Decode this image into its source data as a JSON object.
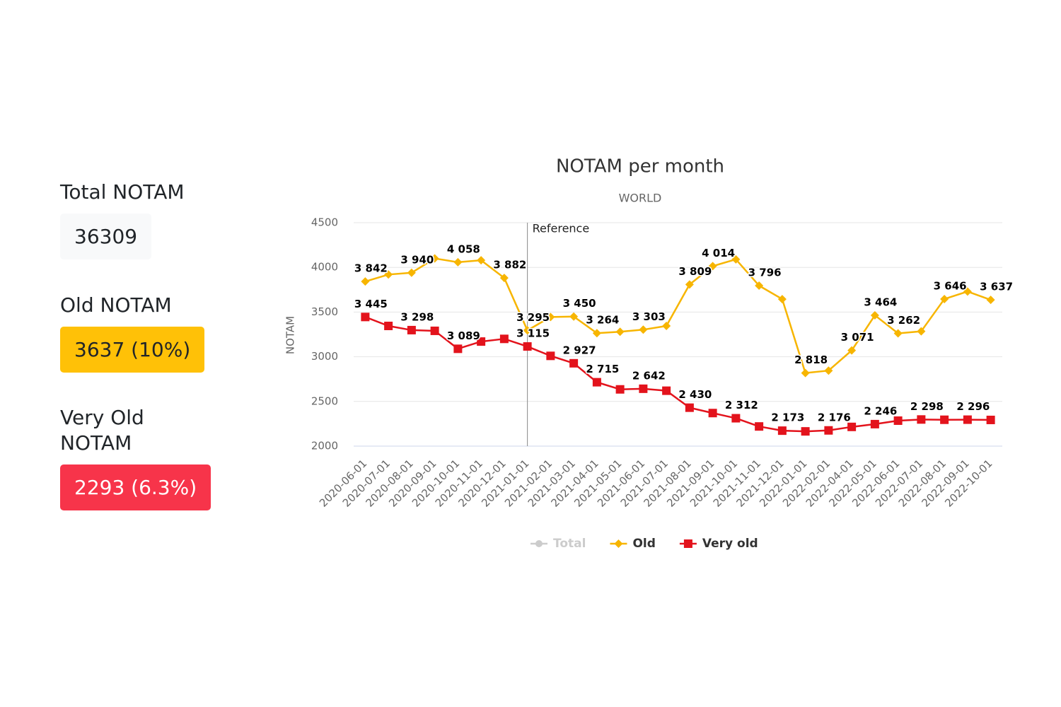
{
  "stats": [
    {
      "label": "Total NOTAM",
      "value": "36309"
    },
    {
      "label": "Old NOTAM",
      "value": "3637 (10%)"
    },
    {
      "label": "Very Old NOTAM",
      "value": "2293 (6.3%)"
    }
  ],
  "chart_data": {
    "type": "line",
    "title": "NOTAM per month",
    "subtitle": "WORLD",
    "y_label": "NOTAM",
    "categories": [
      "2020-06-01",
      "2020-07-01",
      "2020-08-01",
      "2020-09-01",
      "2020-10-01",
      "2020-11-01",
      "2020-12-01",
      "2021-01-01",
      "2021-02-01",
      "2021-03-01",
      "2021-04-01",
      "2021-05-01",
      "2021-06-01",
      "2021-07-01",
      "2021-08-01",
      "2021-09-01",
      "2021-10-01",
      "2021-11-01",
      "2021-12-01",
      "2022-01-01",
      "2022-02-01",
      "2022-04-01",
      "2022-05-01",
      "2022-06-01",
      "2022-07-01",
      "2022-08-01",
      "2022-09-01",
      "2022-10-01"
    ],
    "ylim": [
      2000,
      4500
    ],
    "yticks": [
      2000,
      2500,
      3000,
      3500,
      4000,
      4500
    ],
    "grid": true,
    "legend": "bottom",
    "plot_lines": [
      {
        "x": "2021-01-01",
        "label": "Reference"
      }
    ],
    "series": [
      {
        "name": "Total",
        "color": "#cccccc",
        "visible": false,
        "marker": "circle",
        "values": [
          null,
          null,
          null,
          null,
          null,
          null,
          null,
          null,
          null,
          null,
          null,
          null,
          null,
          null,
          null,
          null,
          null,
          null,
          null,
          null,
          null,
          null,
          null,
          null,
          null,
          null,
          null,
          null
        ]
      },
      {
        "name": "Old",
        "color": "#f7b500",
        "visible": true,
        "marker": "diamond",
        "values": [
          3842,
          3920,
          3940,
          4100,
          4058,
          4080,
          3882,
          3295,
          3445,
          3450,
          3264,
          3280,
          3303,
          3345,
          3809,
          4014,
          4090,
          3796,
          3645,
          2818,
          2845,
          3071,
          3464,
          3262,
          3285,
          3646,
          3730,
          3637
        ],
        "value_labels": [
          "3 842",
          null,
          "3 940",
          null,
          "4 058",
          null,
          "3 882",
          "3 295",
          null,
          "3 450",
          "3 264",
          null,
          "3 303",
          null,
          "3 809",
          "4 014",
          null,
          "3 796",
          null,
          "2 818",
          null,
          "3 071",
          "3 464",
          "3 262",
          null,
          "3 646",
          null,
          "3 637"
        ]
      },
      {
        "name": "Very old",
        "color": "#e3131c",
        "visible": true,
        "marker": "square",
        "values": [
          3445,
          3345,
          3298,
          3290,
          3089,
          3170,
          3200,
          3115,
          3010,
          2927,
          2715,
          2635,
          2642,
          2620,
          2430,
          2370,
          2312,
          2220,
          2173,
          2165,
          2176,
          2215,
          2246,
          2285,
          2298,
          2295,
          2296,
          2293
        ],
        "value_labels": [
          "3 445",
          null,
          "3 298",
          null,
          "3 089",
          null,
          null,
          "3 115",
          null,
          "2 927",
          "2 715",
          null,
          "2 642",
          null,
          "2 430",
          null,
          "2 312",
          null,
          "2 173",
          null,
          "2 176",
          null,
          "2 246",
          null,
          "2 298",
          null,
          "2 296",
          null
        ]
      }
    ]
  }
}
